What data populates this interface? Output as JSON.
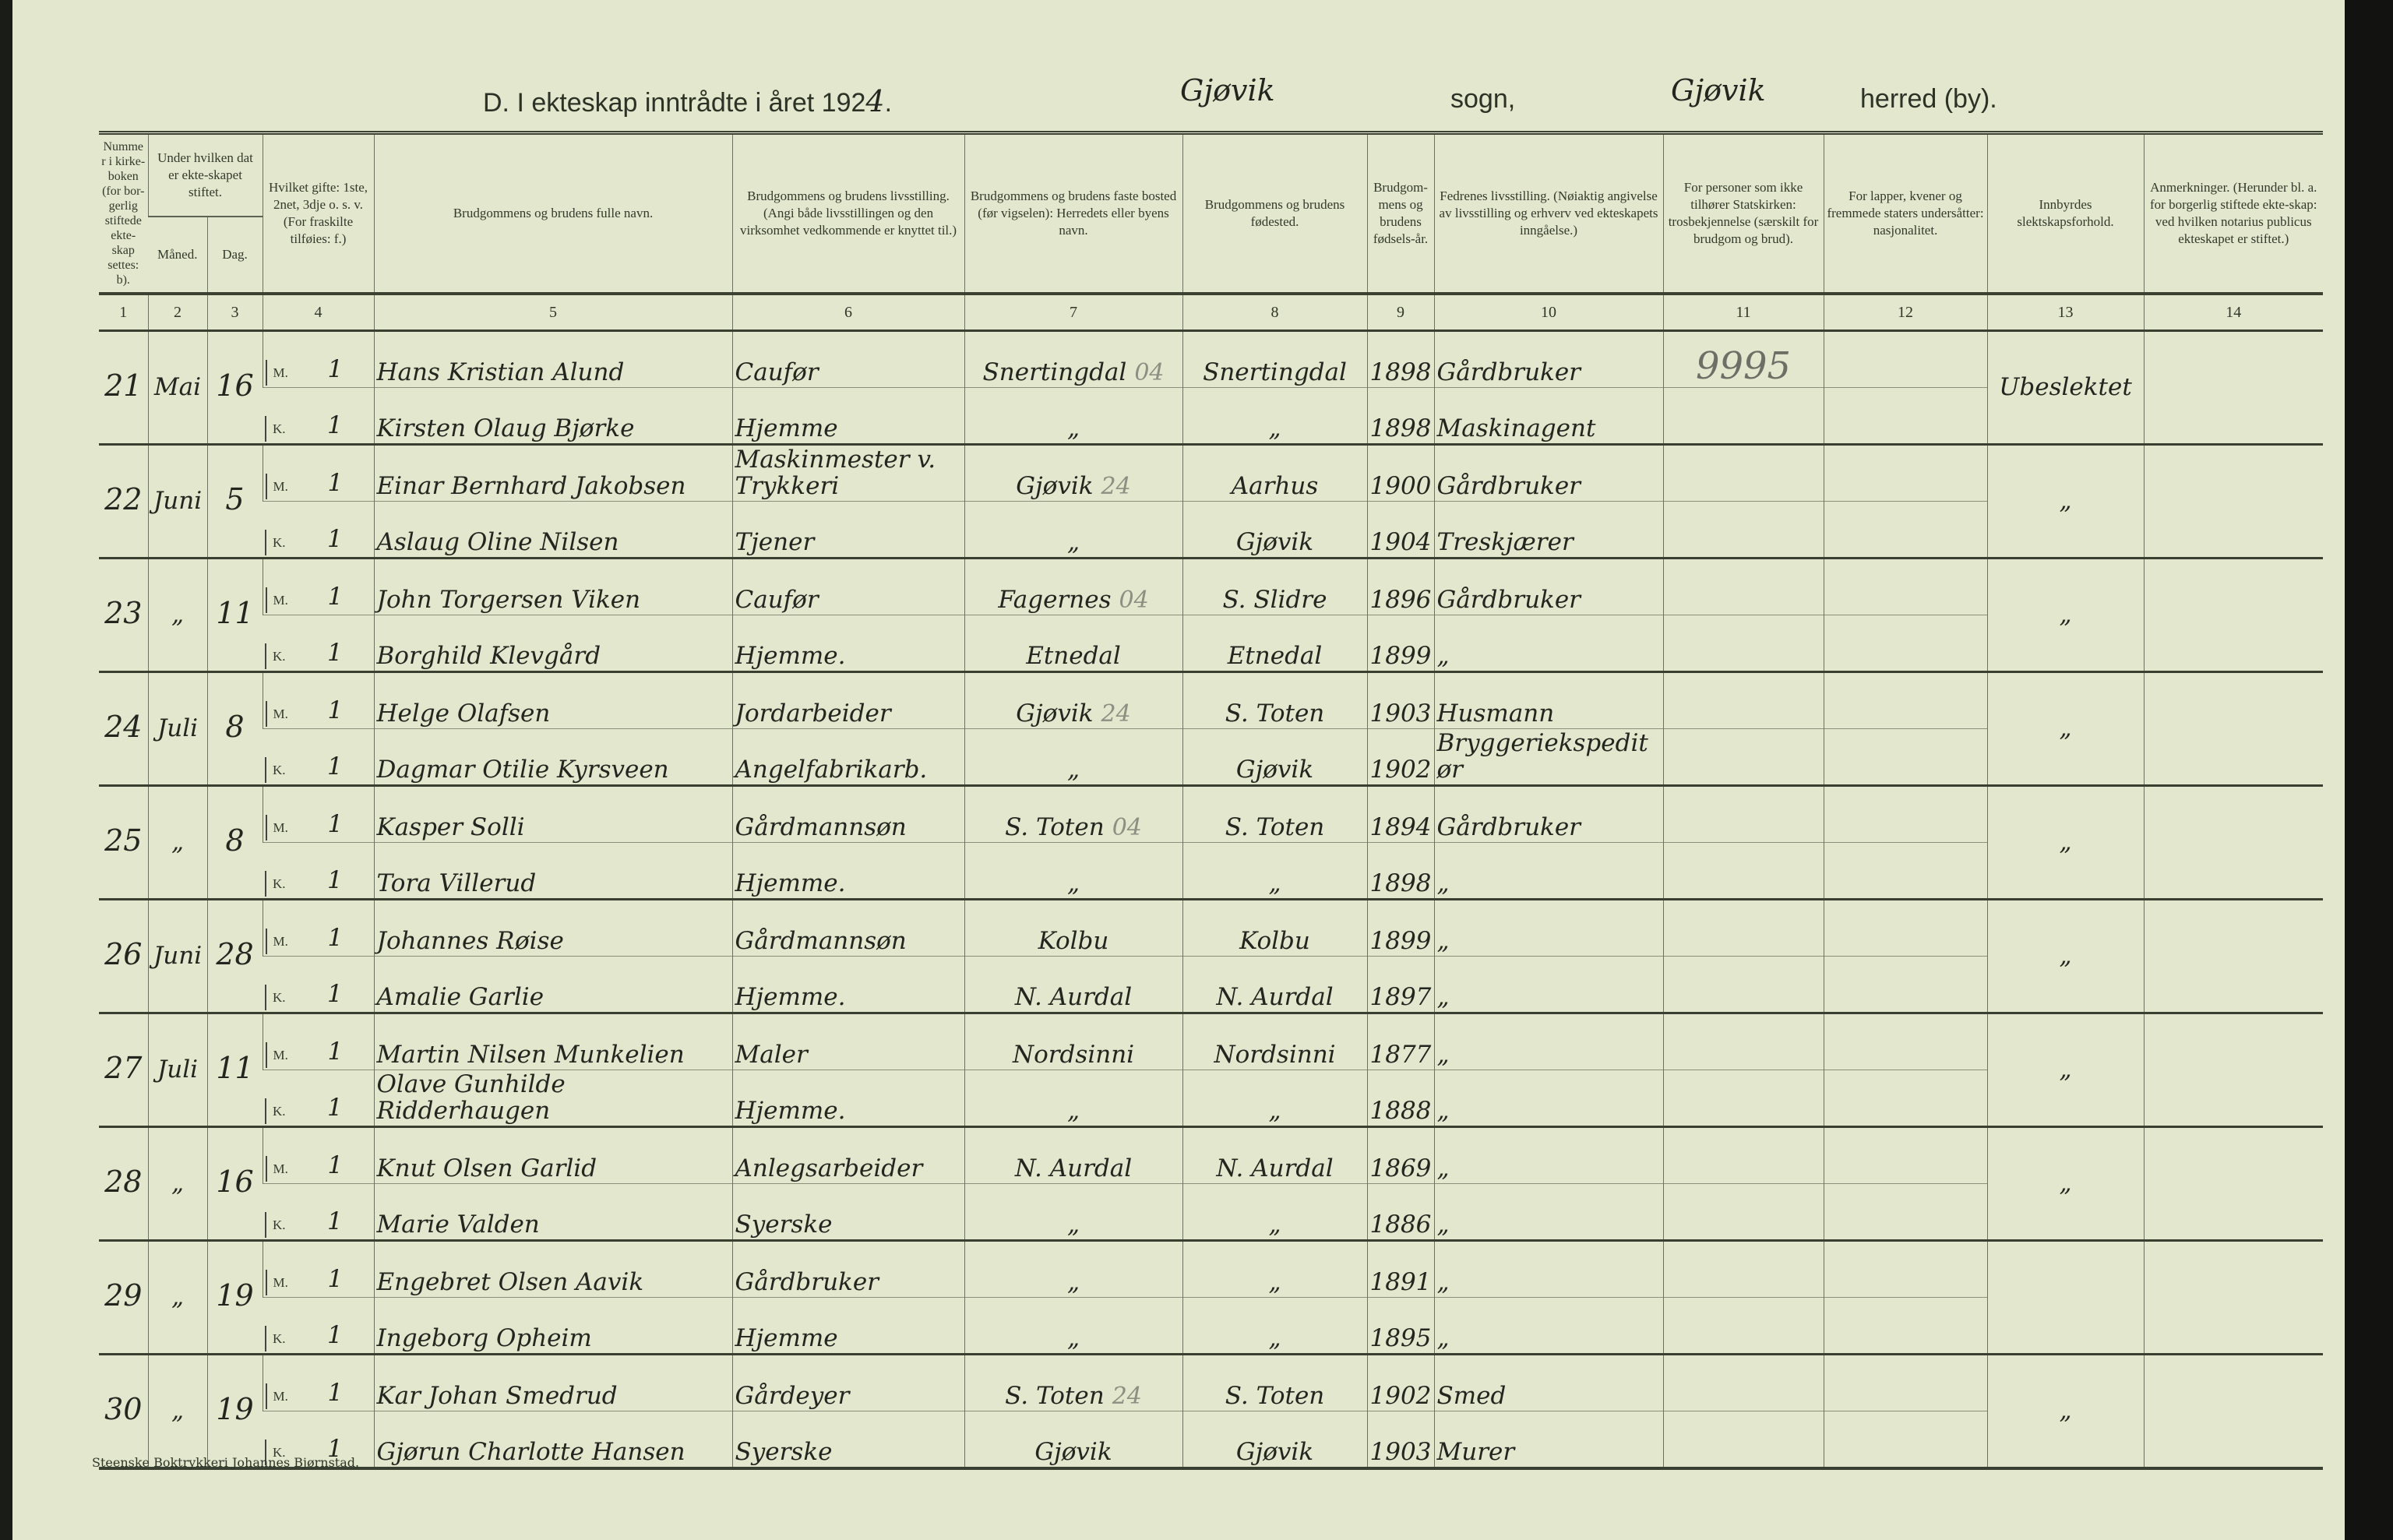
{
  "title": {
    "prefix": "D. I ekteskap inntrådte i året 192",
    "year_digit": "4",
    "parish": "Gjøvik",
    "sogn_label": "sogn,",
    "district": "Gjøvik",
    "herred_label": "herred (by)."
  },
  "headers": {
    "c1": "Nummer i kirke-boken (for bor-gerlig stiftede ekte-skap settes: b).",
    "c23": "Under hvilken dat er ekte-skapet stiftet.",
    "c2": "Måned.",
    "c3": "Dag.",
    "c4": "Hvilket gifte: 1ste, 2net, 3dje o. s. v. (For fraskilte tilføies: f.)",
    "c5": "Brudgommens og brudens fulle navn.",
    "c6": "Brudgommens og brudens livsstilling. (Angi både livsstillingen og den virksomhet vedkommende er knyttet til.)",
    "c7": "Brudgommens og brudens faste bosted (før vigselen): Herredets eller byens navn.",
    "c8": "Brudgommens og brudens fødested.",
    "c9": "Brudgom-mens og brudens fødsels-år.",
    "c10": "Fedrenes livsstilling. (Nøiaktig angivelse av livsstilling og erhverv ved ekteskapets inngåelse.)",
    "c11": "For personer som ikke tilhører Statskirken: trosbekjennelse (særskilt for brudgom og brud).",
    "c12": "For lapper, kvener og fremmede staters undersåtter: nasjonalitet.",
    "c13": "Innbyrdes slektskapsforhold.",
    "c14": "Anmerkninger. (Herunder bl. a. for borgerlig stiftede ekte-skap: ved hvilken notarius publicus ekteskapet er stiftet.)"
  },
  "column_numbers": [
    "1",
    "2",
    "3",
    "4",
    "5",
    "6",
    "7",
    "8",
    "9",
    "10",
    "11",
    "12",
    "13",
    "14"
  ],
  "labels": {
    "groom": "M.",
    "bride": "K."
  },
  "entries": [
    {
      "nr": "21",
      "month": "Mai",
      "day": "16",
      "mark": "04",
      "religion": "9995",
      "kinship": "Ubeslektet",
      "groom": {
        "times": "1",
        "name": "Hans Kristian Alund",
        "occupation": "Caufør",
        "residence": "Snertingdal",
        "birthplace": "Snertingdal",
        "year": "1898",
        "father": "Gårdbruker"
      },
      "bride": {
        "times": "1",
        "name": "Kirsten Olaug Bjørke",
        "occupation": "Hjemme",
        "residence": "„",
        "birthplace": "„",
        "year": "1898",
        "father": "Maskinagent"
      }
    },
    {
      "nr": "22",
      "month": "Juni",
      "day": "5",
      "mark": "24",
      "religion": "",
      "kinship": "„",
      "groom": {
        "times": "1",
        "name": "Einar Bernhard Jakobsen",
        "occupation": "Maskinmester v. Trykkeri",
        "residence": "Gjøvik",
        "birthplace": "Aarhus",
        "year": "1900",
        "father": "Gårdbruker"
      },
      "bride": {
        "times": "1",
        "name": "Aslaug Oline Nilsen",
        "occupation": "Tjener",
        "residence": "„",
        "birthplace": "Gjøvik",
        "year": "1904",
        "father": "Treskjærer"
      }
    },
    {
      "nr": "23",
      "month": "„",
      "day": "11",
      "mark": "04",
      "religion": "",
      "kinship": "„",
      "groom": {
        "times": "1",
        "name": "John Torgersen Viken",
        "occupation": "Caufør",
        "residence": "Fagernes",
        "birthplace": "S. Slidre",
        "year": "1896",
        "father": "Gårdbruker"
      },
      "bride": {
        "times": "1",
        "name": "Borghild Klevgård",
        "occupation": "Hjemme.",
        "residence": "Etnedal",
        "birthplace": "Etnedal",
        "year": "1899",
        "father": "„"
      }
    },
    {
      "nr": "24",
      "month": "Juli",
      "day": "8",
      "mark": "24",
      "religion": "",
      "kinship": "„",
      "groom": {
        "times": "1",
        "name": "Helge Olafsen",
        "occupation": "Jordarbeider",
        "residence": "Gjøvik",
        "birthplace": "S. Toten",
        "year": "1903",
        "father": "Husmann"
      },
      "bride": {
        "times": "1",
        "name": "Dagmar Otilie Kyrsveen",
        "occupation": "Angelfabrikarb.",
        "residence": "„",
        "birthplace": "Gjøvik",
        "year": "1902",
        "father": "Bryggeriekspeditør"
      }
    },
    {
      "nr": "25",
      "month": "„",
      "day": "8",
      "mark": "04",
      "religion": "",
      "kinship": "„",
      "groom": {
        "times": "1",
        "name": "Kasper Solli",
        "occupation": "Gårdmannsøn",
        "residence": "S. Toten",
        "birthplace": "S. Toten",
        "year": "1894",
        "father": "Gårdbruker"
      },
      "bride": {
        "times": "1",
        "name": "Tora Villerud",
        "occupation": "Hjemme.",
        "residence": "„",
        "birthplace": "„",
        "year": "1898",
        "father": "„"
      }
    },
    {
      "nr": "26",
      "month": "Juni",
      "day": "28",
      "mark": "",
      "religion": "",
      "kinship": "„",
      "groom": {
        "times": "1",
        "name": "Johannes Røise",
        "occupation": "Gårdmannsøn",
        "residence": "Kolbu",
        "birthplace": "Kolbu",
        "year": "1899",
        "father": "„"
      },
      "bride": {
        "times": "1",
        "name": "Amalie Garlie",
        "occupation": "Hjemme.",
        "residence": "N. Aurdal",
        "birthplace": "N. Aurdal",
        "year": "1897",
        "father": "„"
      }
    },
    {
      "nr": "27",
      "month": "Juli",
      "day": "11",
      "mark": "",
      "religion": "",
      "kinship": "„",
      "groom": {
        "times": "1",
        "name": "Martin Nilsen Munkelien",
        "occupation": "Maler",
        "residence": "Nordsinni",
        "birthplace": "Nordsinni",
        "year": "1877",
        "father": "„"
      },
      "bride": {
        "times": "1",
        "name": "Olave Gunhilde Ridderhaugen",
        "occupation": "Hjemme.",
        "residence": "„",
        "birthplace": "„",
        "year": "1888",
        "father": "„"
      }
    },
    {
      "nr": "28",
      "month": "„",
      "day": "16",
      "mark": "",
      "religion": "",
      "kinship": "„",
      "groom": {
        "times": "1",
        "name": "Knut Olsen Garlid",
        "occupation": "Anlegsarbeider",
        "residence": "N. Aurdal",
        "birthplace": "N. Aurdal",
        "year": "1869",
        "father": "„"
      },
      "bride": {
        "times": "1",
        "name": "Marie Valden",
        "occupation": "Syerske",
        "residence": "„",
        "birthplace": "„",
        "year": "1886",
        "father": "„"
      }
    },
    {
      "nr": "29",
      "month": "„",
      "day": "19",
      "mark": "",
      "religion": "",
      "kinship": "",
      "groom": {
        "times": "1",
        "name": "Engebret Olsen Aavik",
        "occupation": "Gårdbruker",
        "residence": "„",
        "birthplace": "„",
        "year": "1891",
        "father": "„"
      },
      "bride": {
        "times": "1",
        "name": "Ingeborg Opheim",
        "occupation": "Hjemme",
        "residence": "„",
        "birthplace": "„",
        "year": "1895",
        "father": "„"
      }
    },
    {
      "nr": "30",
      "month": "„",
      "day": "19",
      "mark": "24",
      "religion": "",
      "kinship": "„",
      "groom": {
        "times": "1",
        "name": "Kar Johan Smedrud",
        "occupation": "Gårdeyer",
        "residence": "S. Toten",
        "birthplace": "S. Toten",
        "year": "1902",
        "father": "Smed"
      },
      "bride": {
        "times": "1",
        "name": "Gjørun Charlotte Hansen",
        "occupation": "Syerske",
        "residence": "Gjøvik",
        "birthplace": "Gjøvik",
        "year": "1903",
        "father": "Murer"
      }
    }
  ],
  "printer": "Steenske Boktrykkeri Johannes Bjørnstad."
}
